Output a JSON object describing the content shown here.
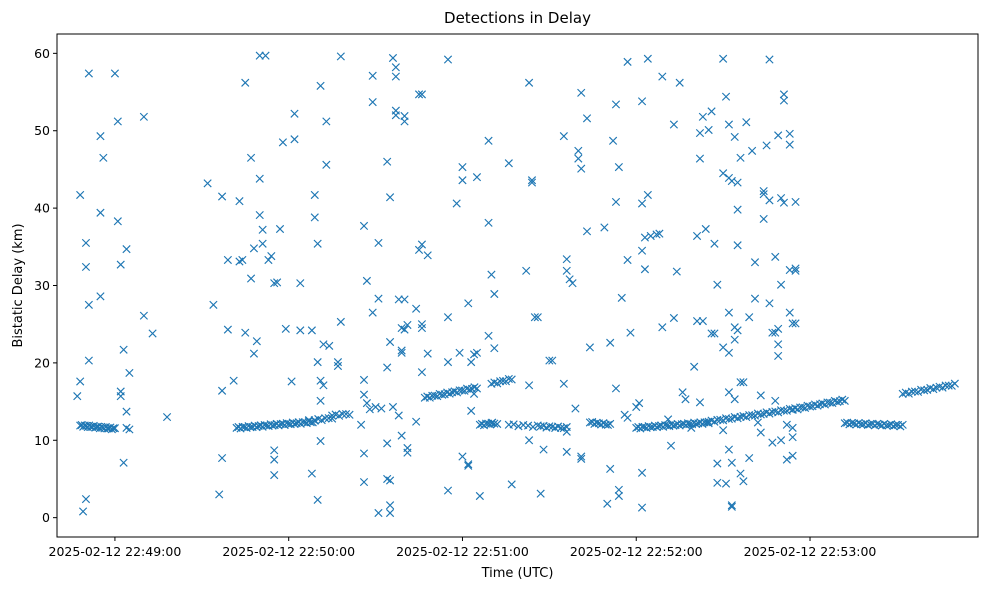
{
  "chart_data": {
    "type": "scatter",
    "title": "Detections in Delay",
    "xlabel": "Time (UTC)",
    "ylabel": "Bistatic Delay (km)",
    "x_unit": "seconds since 2025-02-12 22:48:00",
    "xlim": [
      40,
      358
    ],
    "ylim": [
      -2.5,
      62.5
    ],
    "x_ticks": [
      {
        "value": 60,
        "label": "2025-02-12 22:49:00"
      },
      {
        "value": 120,
        "label": "2025-02-12 22:50:00"
      },
      {
        "value": 180,
        "label": "2025-02-12 22:51:00"
      },
      {
        "value": 240,
        "label": "2025-02-12 22:52:00"
      },
      {
        "value": 300,
        "label": "2025-02-12 22:53:00"
      }
    ],
    "y_ticks": [
      {
        "value": 0,
        "label": "0"
      },
      {
        "value": 10,
        "label": "10"
      },
      {
        "value": 20,
        "label": "20"
      },
      {
        "value": 30,
        "label": "30"
      },
      {
        "value": 40,
        "label": "40"
      },
      {
        "value": 50,
        "label": "50"
      },
      {
        "value": 60,
        "label": "60"
      }
    ],
    "marker": "x",
    "color": "#1f77b4",
    "tracks": [
      {
        "name": "track-1",
        "x_start": 48,
        "x_end": 60,
        "y_start": 11.9,
        "y_end": 11.5,
        "count": 24
      },
      {
        "name": "track-2",
        "x_start": 102,
        "x_end": 129,
        "y_start": 11.6,
        "y_end": 12.4,
        "count": 40
      },
      {
        "name": "track-3",
        "x_start": 129,
        "x_end": 135,
        "y_start": 12.6,
        "y_end": 12.9,
        "count": 6
      },
      {
        "name": "track-4",
        "x_start": 135,
        "x_end": 141,
        "y_start": 13.2,
        "y_end": 13.4,
        "count": 6
      },
      {
        "name": "track-5",
        "x_start": 167,
        "x_end": 185,
        "y_start": 15.5,
        "y_end": 16.8,
        "count": 22
      },
      {
        "name": "track-6",
        "x_start": 186,
        "x_end": 191,
        "y_start": 12.0,
        "y_end": 12.2,
        "count": 8
      },
      {
        "name": "track-7",
        "x_start": 190,
        "x_end": 197,
        "y_start": 17.3,
        "y_end": 17.9,
        "count": 8
      },
      {
        "name": "track-8",
        "x_start": 196,
        "x_end": 206,
        "y_start": 12.0,
        "y_end": 11.8,
        "count": 7
      },
      {
        "name": "track-9",
        "x_start": 207,
        "x_end": 216,
        "y_start": 11.8,
        "y_end": 11.6,
        "count": 10
      },
      {
        "name": "track-10",
        "x_start": 224,
        "x_end": 231,
        "y_start": 12.3,
        "y_end": 12.0,
        "count": 10
      },
      {
        "name": "track-11",
        "x_start": 240,
        "x_end": 265,
        "y_start": 11.6,
        "y_end": 12.3,
        "count": 36
      },
      {
        "name": "track-12",
        "x_start": 265,
        "x_end": 294,
        "y_start": 12.4,
        "y_end": 14.0,
        "count": 30
      },
      {
        "name": "track-13",
        "x_start": 294,
        "x_end": 312,
        "y_start": 14.0,
        "y_end": 15.2,
        "count": 22
      },
      {
        "name": "track-14",
        "x_start": 312,
        "x_end": 332,
        "y_start": 12.2,
        "y_end": 11.9,
        "count": 26
      },
      {
        "name": "track-15",
        "x_start": 332,
        "x_end": 350,
        "y_start": 16.0,
        "y_end": 17.2,
        "count": 18
      }
    ],
    "scattered_points": [
      [
        47,
        15.7
      ],
      [
        48,
        41.7
      ],
      [
        48,
        17.6
      ],
      [
        49,
        0.8
      ],
      [
        50,
        35.5
      ],
      [
        50,
        2.4
      ],
      [
        50,
        32.4
      ],
      [
        51,
        57.4
      ],
      [
        51,
        27.5
      ],
      [
        51,
        20.3
      ],
      [
        55,
        49.3
      ],
      [
        55,
        39.4
      ],
      [
        55,
        28.6
      ],
      [
        56,
        46.5
      ],
      [
        60,
        57.4
      ],
      [
        61,
        51.2
      ],
      [
        61,
        38.3
      ],
      [
        62,
        32.7
      ],
      [
        62,
        16.3
      ],
      [
        62,
        15.7
      ],
      [
        63,
        21.7
      ],
      [
        63,
        7.1
      ],
      [
        64,
        13.7
      ],
      [
        64,
        34.7
      ],
      [
        64,
        11.6
      ],
      [
        65,
        11.4
      ],
      [
        65,
        18.7
      ],
      [
        70,
        51.8
      ],
      [
        70,
        26.1
      ],
      [
        73,
        23.8
      ],
      [
        78,
        13.0
      ],
      [
        92,
        43.2
      ],
      [
        94,
        27.5
      ],
      [
        96,
        3.0
      ],
      [
        97,
        41.5
      ],
      [
        97,
        16.4
      ],
      [
        97,
        7.7
      ],
      [
        99,
        33.3
      ],
      [
        99,
        24.3
      ],
      [
        101,
        17.7
      ],
      [
        103,
        40.9
      ],
      [
        103,
        33.1
      ],
      [
        104,
        33.3
      ],
      [
        105,
        56.2
      ],
      [
        105,
        23.9
      ],
      [
        107,
        46.5
      ],
      [
        107,
        30.9
      ],
      [
        108,
        21.2
      ],
      [
        108,
        34.8
      ],
      [
        109,
        22.8
      ],
      [
        110,
        59.7
      ],
      [
        110,
        43.8
      ],
      [
        110,
        39.1
      ],
      [
        111,
        37.2
      ],
      [
        111,
        35.4
      ],
      [
        112,
        59.7
      ],
      [
        113,
        33.3
      ],
      [
        114,
        33.8
      ],
      [
        115,
        30.3
      ],
      [
        115,
        8.7
      ],
      [
        115,
        7.5
      ],
      [
        115,
        5.5
      ],
      [
        116,
        30.4
      ],
      [
        117,
        37.3
      ],
      [
        118,
        48.5
      ],
      [
        119,
        24.4
      ],
      [
        121,
        17.6
      ],
      [
        122,
        52.2
      ],
      [
        122,
        48.9
      ],
      [
        124,
        30.3
      ],
      [
        124,
        24.2
      ],
      [
        127,
        12.6
      ],
      [
        128,
        5.7
      ],
      [
        128,
        24.2
      ],
      [
        129,
        41.7
      ],
      [
        129,
        38.8
      ],
      [
        130,
        2.3
      ],
      [
        130,
        35.4
      ],
      [
        130,
        20.1
      ],
      [
        131,
        17.7
      ],
      [
        131,
        15.1
      ],
      [
        131,
        9.9
      ],
      [
        131,
        55.8
      ],
      [
        132,
        17.1
      ],
      [
        132,
        22.4
      ],
      [
        133,
        51.2
      ],
      [
        133,
        45.6
      ],
      [
        134,
        22.2
      ],
      [
        137,
        20.1
      ],
      [
        137,
        19.6
      ],
      [
        138,
        25.3
      ],
      [
        138,
        59.6
      ],
      [
        145,
        12.0
      ],
      [
        146,
        37.7
      ],
      [
        146,
        17.8
      ],
      [
        146,
        15.9
      ],
      [
        146,
        8.3
      ],
      [
        146,
        4.6
      ],
      [
        147,
        30.6
      ],
      [
        147,
        14.8
      ],
      [
        148,
        14.0
      ],
      [
        149,
        57.1
      ],
      [
        149,
        53.7
      ],
      [
        149,
        26.5
      ],
      [
        150,
        14.3
      ],
      [
        151,
        0.6
      ],
      [
        151,
        28.3
      ],
      [
        151,
        35.5
      ],
      [
        152,
        14.1
      ],
      [
        154,
        46.0
      ],
      [
        154,
        19.4
      ],
      [
        154,
        9.6
      ],
      [
        154,
        5.0
      ],
      [
        155,
        0.6
      ],
      [
        155,
        41.4
      ],
      [
        155,
        22.7
      ],
      [
        155,
        4.8
      ],
      [
        155,
        1.6
      ],
      [
        156,
        59.4
      ],
      [
        156,
        14.3
      ],
      [
        157,
        57.0
      ],
      [
        157,
        52.6
      ],
      [
        157,
        52.0
      ],
      [
        157,
        58.2
      ],
      [
        158,
        28.2
      ],
      [
        158,
        13.2
      ],
      [
        159,
        10.6
      ],
      [
        159,
        24.5
      ],
      [
        159,
        21.6
      ],
      [
        159,
        21.3
      ],
      [
        160,
        51.9
      ],
      [
        160,
        51.2
      ],
      [
        160,
        28.2
      ],
      [
        160,
        24.3
      ],
      [
        161,
        9.0
      ],
      [
        161,
        8.4
      ],
      [
        161,
        24.9
      ],
      [
        164,
        27.0
      ],
      [
        164,
        12.4
      ],
      [
        165,
        54.7
      ],
      [
        165,
        34.6
      ],
      [
        166,
        54.7
      ],
      [
        166,
        35.3
      ],
      [
        166,
        25.0
      ],
      [
        166,
        24.5
      ],
      [
        166,
        18.8
      ],
      [
        168,
        33.9
      ],
      [
        168,
        21.2
      ],
      [
        175,
        59.2
      ],
      [
        175,
        20.1
      ],
      [
        175,
        3.5
      ],
      [
        175,
        25.9
      ],
      [
        178,
        40.6
      ],
      [
        179,
        21.3
      ],
      [
        180,
        45.3
      ],
      [
        180,
        43.6
      ],
      [
        180,
        7.9
      ],
      [
        182,
        27.7
      ],
      [
        182,
        6.9
      ],
      [
        182,
        6.7
      ],
      [
        183,
        20.1
      ],
      [
        183,
        13.8
      ],
      [
        184,
        16.0
      ],
      [
        184,
        21.1
      ],
      [
        185,
        44.0
      ],
      [
        185,
        21.3
      ],
      [
        186,
        2.8
      ],
      [
        189,
        48.7
      ],
      [
        189,
        38.1
      ],
      [
        189,
        23.5
      ],
      [
        190,
        31.4
      ],
      [
        190,
        12.2
      ],
      [
        191,
        28.9
      ],
      [
        191,
        21.9
      ],
      [
        192,
        12.1
      ],
      [
        196,
        45.8
      ],
      [
        197,
        4.3
      ],
      [
        202,
        31.9
      ],
      [
        203,
        56.2
      ],
      [
        203,
        10.0
      ],
      [
        203,
        17.1
      ],
      [
        204,
        43.6
      ],
      [
        204,
        43.3
      ],
      [
        205,
        25.9
      ],
      [
        206,
        25.9
      ],
      [
        207,
        3.1
      ],
      [
        208,
        8.8
      ],
      [
        210,
        20.3
      ],
      [
        211,
        20.3
      ],
      [
        215,
        49.3
      ],
      [
        215,
        17.3
      ],
      [
        216,
        8.5
      ],
      [
        216,
        11.1
      ],
      [
        216,
        33.4
      ],
      [
        216,
        31.9
      ],
      [
        217,
        30.8
      ],
      [
        218,
        30.3
      ],
      [
        219,
        14.1
      ],
      [
        220,
        47.4
      ],
      [
        220,
        46.4
      ],
      [
        221,
        45.1
      ],
      [
        221,
        54.9
      ],
      [
        221,
        7.9
      ],
      [
        221,
        7.6
      ],
      [
        223,
        51.6
      ],
      [
        223,
        37.0
      ],
      [
        224,
        22.0
      ],
      [
        229,
        37.5
      ],
      [
        230,
        1.8
      ],
      [
        231,
        22.6
      ],
      [
        231,
        6.3
      ],
      [
        232,
        48.7
      ],
      [
        233,
        53.4
      ],
      [
        233,
        40.8
      ],
      [
        233,
        16.7
      ],
      [
        234,
        45.3
      ],
      [
        234,
        2.8
      ],
      [
        234,
        3.6
      ],
      [
        235,
        28.4
      ],
      [
        236,
        13.3
      ],
      [
        237,
        33.3
      ],
      [
        237,
        58.9
      ],
      [
        237,
        12.9
      ],
      [
        238,
        23.9
      ],
      [
        240,
        14.3
      ],
      [
        241,
        14.8
      ],
      [
        242,
        40.6
      ],
      [
        242,
        34.5
      ],
      [
        242,
        53.8
      ],
      [
        242,
        1.3
      ],
      [
        242,
        5.8
      ],
      [
        243,
        32.1
      ],
      [
        243,
        36.2
      ],
      [
        244,
        59.3
      ],
      [
        244,
        41.7
      ],
      [
        245,
        36.4
      ],
      [
        247,
        36.6
      ],
      [
        248,
        36.7
      ],
      [
        249,
        57.0
      ],
      [
        249,
        24.6
      ],
      [
        251,
        12.7
      ],
      [
        252,
        9.3
      ],
      [
        253,
        25.8
      ],
      [
        253,
        50.8
      ],
      [
        254,
        31.8
      ],
      [
        255,
        56.2
      ],
      [
        256,
        16.2
      ],
      [
        257,
        15.3
      ],
      [
        259,
        11.6
      ],
      [
        260,
        19.5
      ],
      [
        261,
        36.4
      ],
      [
        261,
        25.4
      ],
      [
        262,
        49.7
      ],
      [
        262,
        46.4
      ],
      [
        262,
        14.9
      ],
      [
        263,
        51.8
      ],
      [
        263,
        25.4
      ],
      [
        264,
        37.3
      ],
      [
        265,
        50.1
      ],
      [
        266,
        52.5
      ],
      [
        266,
        23.8
      ],
      [
        267,
        35.4
      ],
      [
        267,
        23.8
      ],
      [
        268,
        30.1
      ],
      [
        268,
        7.0
      ],
      [
        268,
        4.5
      ],
      [
        270,
        59.3
      ],
      [
        270,
        44.5
      ],
      [
        270,
        22.0
      ],
      [
        270,
        11.3
      ],
      [
        271,
        54.4
      ],
      [
        271,
        4.4
      ],
      [
        272,
        43.9
      ],
      [
        272,
        50.8
      ],
      [
        272,
        26.5
      ],
      [
        272,
        21.3
      ],
      [
        272,
        16.2
      ],
      [
        272,
        8.8
      ],
      [
        273,
        7.1
      ],
      [
        273,
        1.4
      ],
      [
        273,
        1.6
      ],
      [
        273,
        43.5
      ],
      [
        274,
        24.6
      ],
      [
        274,
        23.0
      ],
      [
        274,
        49.2
      ],
      [
        274,
        15.3
      ],
      [
        275,
        43.3
      ],
      [
        275,
        39.8
      ],
      [
        275,
        35.2
      ],
      [
        275,
        24.2
      ],
      [
        276,
        46.5
      ],
      [
        276,
        17.5
      ],
      [
        276,
        5.7
      ],
      [
        277,
        17.5
      ],
      [
        277,
        4.7
      ],
      [
        278,
        51.1
      ],
      [
        279,
        25.9
      ],
      [
        279,
        7.7
      ],
      [
        280,
        47.4
      ],
      [
        281,
        33.0
      ],
      [
        281,
        28.3
      ],
      [
        282,
        12.3
      ],
      [
        283,
        15.8
      ],
      [
        283,
        11.0
      ],
      [
        284,
        42.2
      ],
      [
        284,
        41.8
      ],
      [
        284,
        38.6
      ],
      [
        285,
        48.1
      ],
      [
        286,
        27.7
      ],
      [
        286,
        59.2
      ],
      [
        286,
        41.0
      ],
      [
        287,
        23.9
      ],
      [
        287,
        9.7
      ],
      [
        288,
        33.7
      ],
      [
        288,
        23.9
      ],
      [
        288,
        15.1
      ],
      [
        289,
        49.4
      ],
      [
        289,
        24.4
      ],
      [
        289,
        22.4
      ],
      [
        289,
        20.9
      ],
      [
        290,
        30.1
      ],
      [
        290,
        41.3
      ],
      [
        290,
        10.0
      ],
      [
        291,
        40.7
      ],
      [
        291,
        54.7
      ],
      [
        291,
        53.9
      ],
      [
        292,
        7.5
      ],
      [
        292,
        12.0
      ],
      [
        293,
        26.5
      ],
      [
        293,
        32.0
      ],
      [
        293,
        48.2
      ],
      [
        293,
        49.6
      ],
      [
        294,
        25.1
      ],
      [
        294,
        8.0
      ],
      [
        295,
        40.8
      ],
      [
        295,
        31.9
      ],
      [
        295,
        32.2
      ],
      [
        295,
        25.1
      ],
      [
        294,
        10.4
      ],
      [
        294,
        11.6
      ]
    ]
  }
}
